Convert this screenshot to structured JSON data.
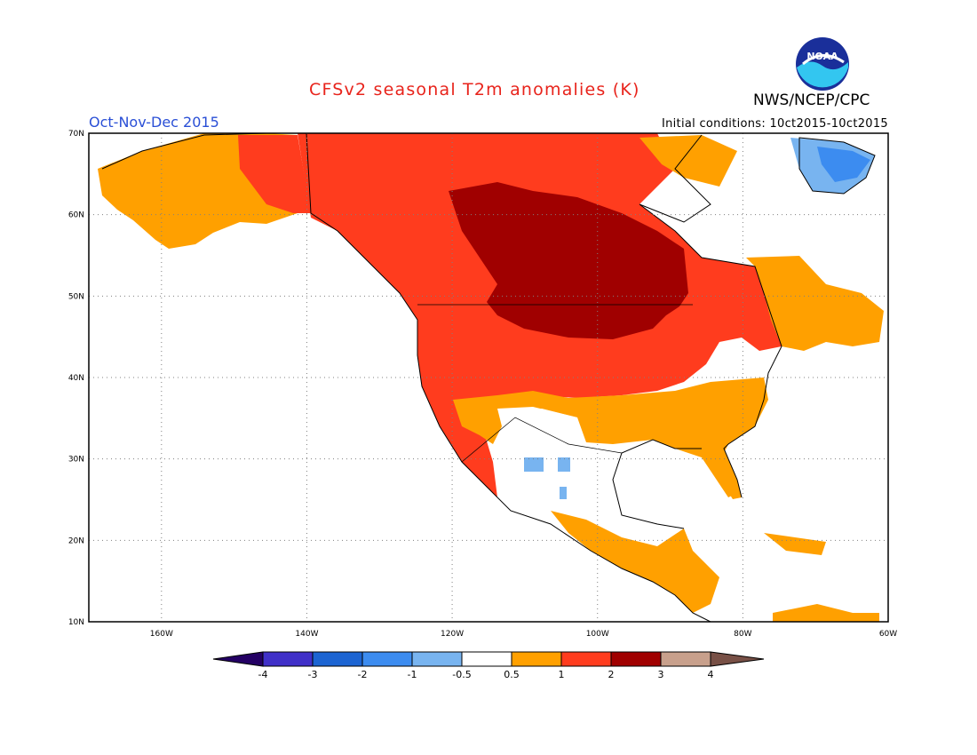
{
  "title": "CFSv2 seasonal T2m anomalies (K)",
  "agency": "NWS/NCEP/CPC",
  "logo_text": "NOAA",
  "season": "Oct-Nov-Dec 2015",
  "initial_conditions": "Initial conditions: 10ct2015-10ct2015",
  "chart_data": {
    "type": "heatmap",
    "title": "CFSv2 seasonal T2m anomalies (K)",
    "subtitle": "Oct-Nov-Dec 2015",
    "x_axis": {
      "ticks": [
        "160W",
        "140W",
        "120W",
        "100W",
        "80W",
        "60W"
      ],
      "range": [
        -170,
        -60
      ]
    },
    "y_axis": {
      "ticks": [
        "10N",
        "20N",
        "30N",
        "40N",
        "50N",
        "60N",
        "70N"
      ],
      "range": [
        10,
        70
      ]
    },
    "grid": true,
    "colorbar": {
      "levels": [
        "-4",
        "-3",
        "-2",
        "-1",
        "-0.5",
        "0.5",
        "1",
        "2",
        "3",
        "4"
      ],
      "colors": [
        "#240064",
        "#4030c8",
        "#1c64d2",
        "#3c8cf0",
        "#78b4f0",
        "#ffffff",
        "#ffa000",
        "#ff3c1e",
        "#a00000",
        "#c8a08c",
        "#785046"
      ]
    },
    "regions": [
      {
        "area": "Alaska",
        "anomaly_k": "1 to 2"
      },
      {
        "area": "Western Canada",
        "anomaly_k": "1 to 2"
      },
      {
        "area": "Central Canada and Northern Plains",
        "anomaly_k": "2 to 3"
      },
      {
        "area": "Western United States",
        "anomaly_k": "1 to 2"
      },
      {
        "area": "Eastern Canada (Quebec/Labrador)",
        "anomaly_k": "0.5 to 2"
      },
      {
        "area": "Southern Plains and Southeast US",
        "anomaly_k": "0.5 to 1"
      },
      {
        "area": "Desert Southwest",
        "anomaly_k": "-0.5 to 0.5"
      },
      {
        "area": "Northern Mexico (isolated)",
        "anomaly_k": "-1 to -0.5"
      },
      {
        "area": "Greenland southwest coast",
        "anomaly_k": "-1 to -0.5"
      },
      {
        "area": "Central America",
        "anomaly_k": "0.5 to 1"
      }
    ]
  }
}
